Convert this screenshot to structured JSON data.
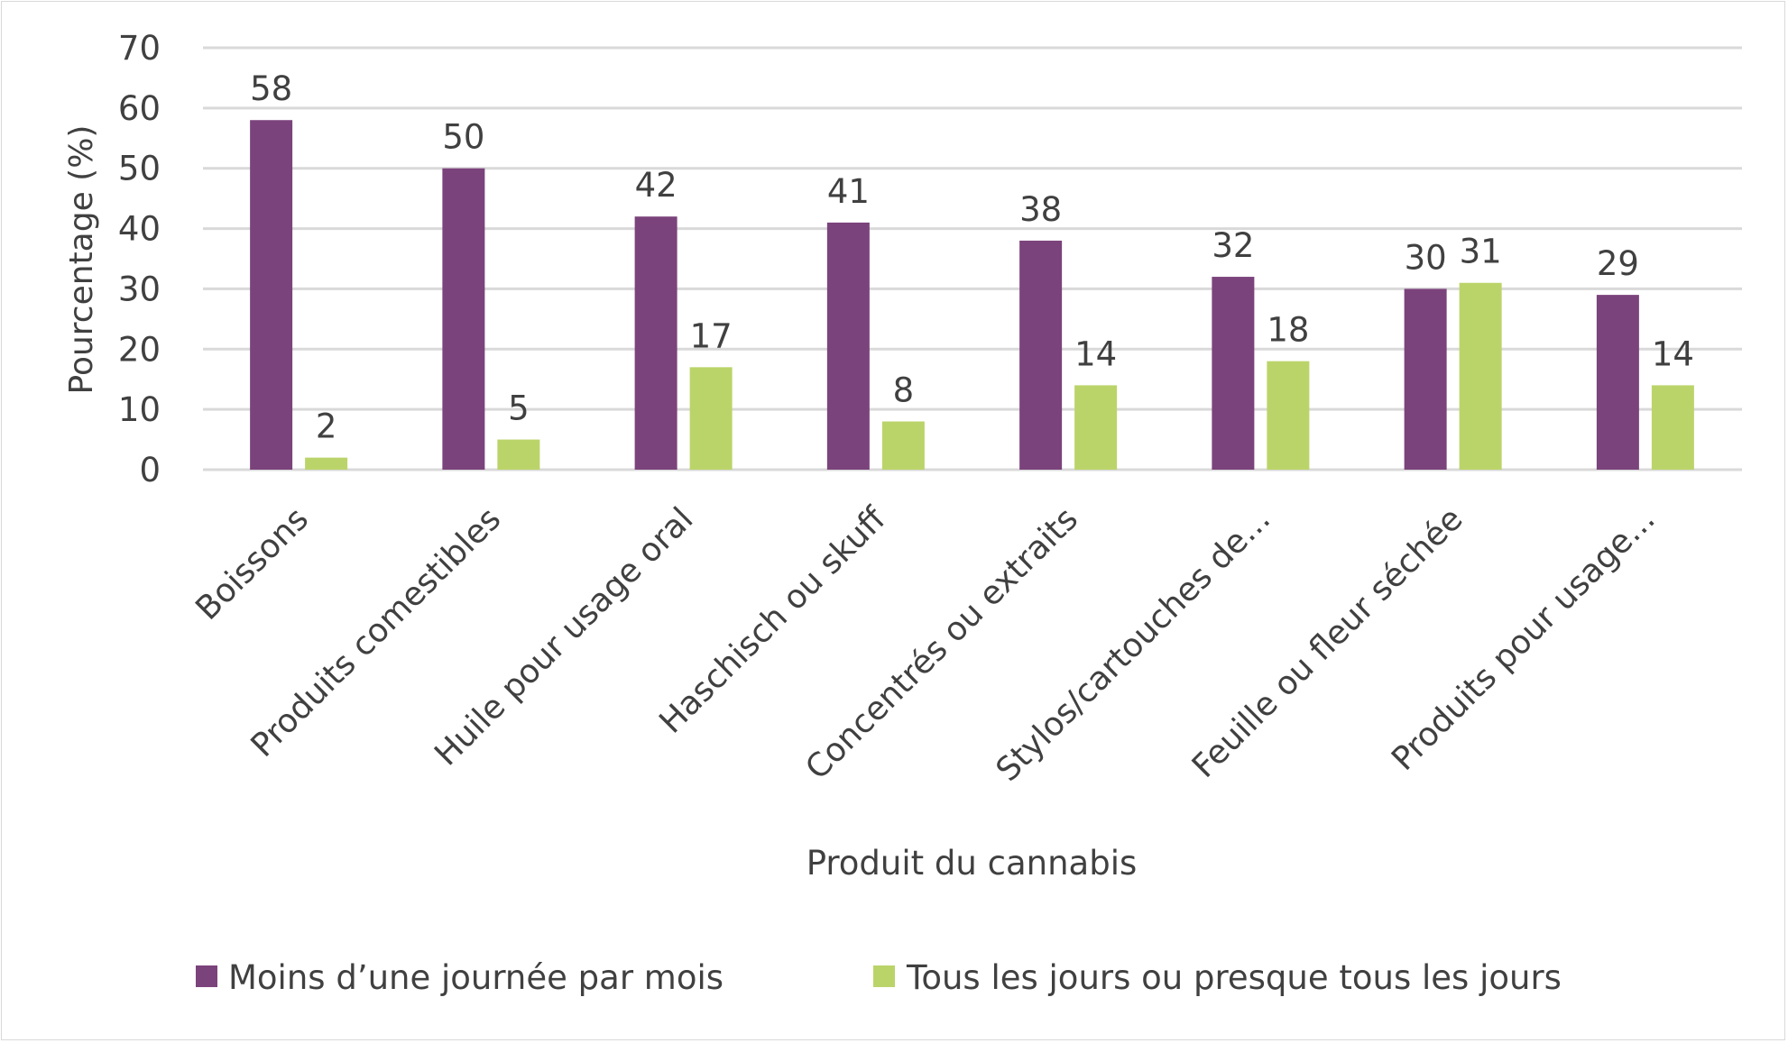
{
  "chart_data": {
    "type": "bar",
    "title": "",
    "xlabel": "Produit du cannabis",
    "ylabel": "Pourcentage (%)",
    "ylim": [
      0,
      70
    ],
    "yticks": [
      0,
      10,
      20,
      30,
      40,
      50,
      60,
      70
    ],
    "grid": true,
    "legend_position": "bottom",
    "categories": [
      "Boissons",
      "Produits comestibles",
      "Huile pour usage oral",
      "Haschisch ou skuff",
      "Concentrés ou extraits",
      "Stylos/cartouches de...",
      "Feuille ou fleur séchée",
      "Produits pour usage..."
    ],
    "series": [
      {
        "name": "Moins d’une journée par mois",
        "color": "#7b437b",
        "values": [
          58,
          50,
          42,
          41,
          38,
          32,
          30,
          29
        ]
      },
      {
        "name": "Tous les jours ou presque tous les jours",
        "color": "#bbd46a",
        "values": [
          2,
          5,
          17,
          8,
          14,
          18,
          31,
          14
        ]
      }
    ]
  }
}
